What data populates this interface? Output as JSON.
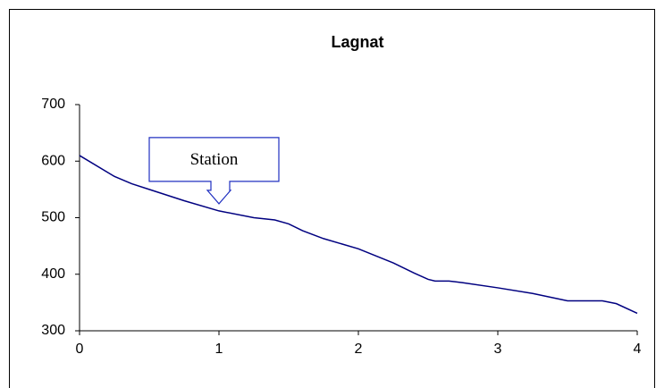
{
  "chart_data": {
    "type": "line",
    "title": "Lagnat",
    "x": [
      0,
      0.25,
      0.375,
      0.5,
      0.75,
      1,
      1.25,
      1.4,
      1.5,
      1.6,
      1.75,
      2,
      2.25,
      2.4,
      2.5,
      2.55,
      2.65,
      2.75,
      3,
      3.25,
      3.5,
      3.75,
      3.85,
      4
    ],
    "series": [
      {
        "color": "#000080",
        "values": [
          610,
          573,
          560,
          550,
          530,
          512,
          500,
          496,
          489,
          477,
          463,
          445,
          420,
          402,
          391,
          388,
          388,
          385,
          376,
          366,
          353,
          353,
          348,
          331
        ]
      }
    ],
    "xlim": [
      0,
      4
    ],
    "xticks": [
      0,
      1,
      2,
      3,
      4
    ],
    "ylim": [
      300,
      700
    ],
    "yticks": [
      300,
      400,
      500,
      600,
      700
    ],
    "annotations": [
      {
        "text": "Station",
        "x": 1,
        "y": 512
      }
    ]
  }
}
